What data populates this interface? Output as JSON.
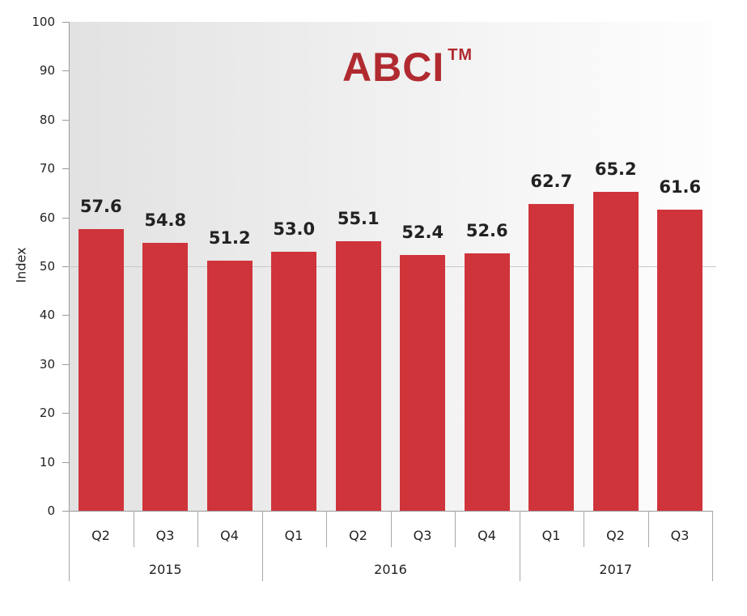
{
  "chart_data": {
    "type": "bar",
    "title": "ABCI",
    "title_mark": "TM",
    "xlabel": "",
    "ylabel": "Index",
    "ylim": [
      0,
      100
    ],
    "yticks": [
      0,
      10,
      20,
      30,
      40,
      50,
      60,
      70,
      80,
      90,
      100
    ],
    "reference_line": 50,
    "grid": false,
    "bar_color": "#d0343b",
    "title_color": "#b02a30",
    "categories": [
      "Q2",
      "Q3",
      "Q4",
      "Q1",
      "Q2",
      "Q3",
      "Q4",
      "Q1",
      "Q2",
      "Q3"
    ],
    "groups": [
      {
        "label": "2015",
        "categories": [
          "Q2",
          "Q3",
          "Q4"
        ]
      },
      {
        "label": "2016",
        "categories": [
          "Q1",
          "Q2",
          "Q3",
          "Q4"
        ]
      },
      {
        "label": "2017",
        "categories": [
          "Q1",
          "Q2",
          "Q3"
        ]
      }
    ],
    "series": [
      {
        "name": "ABCI",
        "values": [
          57.6,
          54.8,
          51.2,
          53.0,
          55.1,
          52.4,
          52.6,
          62.7,
          65.2,
          61.6
        ]
      }
    ],
    "value_labels": [
      "57.6",
      "54.8",
      "51.2",
      "53.0",
      "55.1",
      "52.4",
      "52.6",
      "62.7",
      "65.2",
      "61.6"
    ]
  }
}
